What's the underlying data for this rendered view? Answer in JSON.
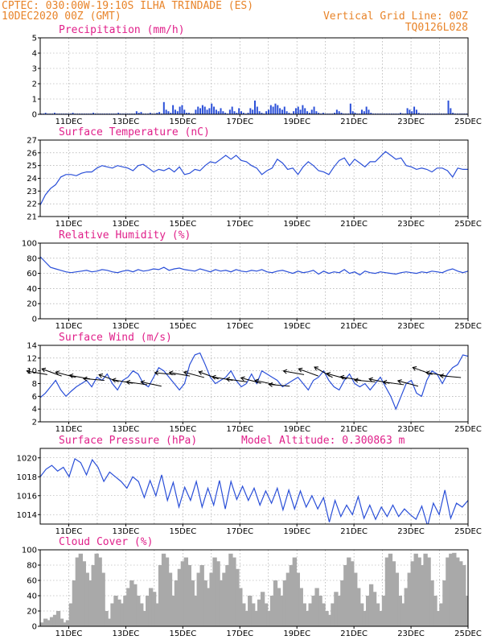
{
  "header": {
    "line1_left": "CPTEC:  030:00W-19:10S  ILHA TRINDADE (ES)",
    "line2_left": "10DEC2020 00Z (GMT)",
    "line1_right": "Vertical Grid Line: 00Z",
    "line2_right": "TQ0126L028"
  },
  "colors": {
    "header": "#e8842a",
    "title": "#e0208a",
    "line": "#2a4fd8",
    "bars": "#2a4fd8",
    "cloud": "#a9a9a9",
    "arrows": "#000000"
  },
  "chart_data": [
    {
      "id": "precip",
      "type": "bar",
      "title": "Precipitation (mm/h)",
      "ylim": [
        0,
        5
      ],
      "yticks": [
        0,
        1,
        2,
        3,
        4,
        5
      ],
      "xticks": [
        "11DEC",
        "13DEC",
        "15DEC",
        "17DEC",
        "19DEC",
        "21DEC",
        "23DEC",
        "25DEC"
      ],
      "x_unit_days": [
        10,
        25
      ],
      "series": [
        {
          "values": [
            0.05,
            0.05,
            0.1,
            0.05,
            0.05,
            0.05,
            0.1,
            0.05,
            0.05,
            0.05,
            0.05,
            0.05,
            0.05,
            0.05,
            0.1,
            0.05,
            0.05,
            0.05,
            0.05,
            0.05,
            0.05,
            0.05,
            0.05,
            0.1,
            0.05,
            0.05,
            0.05,
            0.05,
            0.05,
            0.05,
            0.05,
            0.05,
            0.05,
            0.05,
            0.1,
            0.05,
            0.05,
            0.05,
            0.05,
            0.05,
            0.05,
            0.05,
            0.2,
            0.1,
            0.15,
            0.05,
            0.05,
            0.05,
            0.1,
            0.05,
            0.05,
            0.1,
            0.15,
            0.05,
            0.8,
            0.3,
            0.2,
            0.1,
            0.6,
            0.3,
            0.2,
            0.5,
            0.6,
            0.3,
            0.1,
            0.1,
            0.05,
            0.05,
            0.3,
            0.5,
            0.4,
            0.6,
            0.5,
            0.3,
            0.4,
            0.7,
            0.5,
            0.3,
            0.2,
            0.4,
            0.2,
            0.1,
            0.05,
            0.3,
            0.5,
            0.2,
            0.1,
            0.4,
            0.2,
            0.1,
            0.05,
            0.1,
            0.4,
            0.3,
            0.9,
            0.5,
            0.2,
            0.1,
            0.05,
            0.2,
            0.3,
            0.6,
            0.5,
            0.7,
            0.6,
            0.4,
            0.3,
            0.5,
            0.2,
            0.1,
            0.05,
            0.2,
            0.4,
            0.5,
            0.3,
            0.6,
            0.4,
            0.2,
            0.1,
            0.3,
            0.5,
            0.2,
            0.1,
            0.05,
            0.1,
            0.05,
            0.05,
            0.05,
            0.05,
            0.1,
            0.3,
            0.2,
            0.1,
            0.05,
            0.05,
            0.05,
            0.7,
            0.2,
            0.1,
            0.05,
            0.05,
            0.3,
            0.2,
            0.5,
            0.3,
            0.1,
            0.05,
            0.05,
            0.05,
            0.05,
            0.05,
            0.05,
            0.05,
            0.05,
            0.05,
            0.05,
            0.05,
            0.05,
            0.1,
            0.05,
            0.05,
            0.4,
            0.3,
            0.2,
            0.5,
            0.3,
            0.1,
            0.05,
            0.05,
            0.05,
            0.05,
            0.05,
            0.05,
            0.05,
            0.05,
            0.05,
            0.05,
            0.05,
            0.05,
            0.9,
            0.4,
            0.1,
            0.05,
            0.05,
            0.05,
            0.05,
            0.05,
            0.05
          ]
        }
      ]
    },
    {
      "id": "temp",
      "type": "line",
      "title": "Surface Temperature (nC)",
      "ylim": [
        21,
        27
      ],
      "yticks": [
        21,
        22,
        23,
        24,
        25,
        26,
        27
      ],
      "xticks": [
        "11DEC",
        "13DEC",
        "15DEC",
        "17DEC",
        "19DEC",
        "21DEC",
        "23DEC",
        "25DEC"
      ],
      "x_unit_days": [
        10,
        25
      ],
      "series": [
        {
          "values": [
            21.9,
            22.7,
            23.2,
            23.5,
            24.1,
            24.3,
            24.3,
            24.2,
            24.4,
            24.5,
            24.5,
            24.8,
            25.0,
            24.9,
            24.8,
            25.0,
            24.9,
            24.8,
            24.6,
            25.0,
            25.1,
            24.8,
            24.5,
            24.7,
            24.6,
            24.8,
            24.5,
            24.9,
            24.3,
            24.4,
            24.7,
            24.6,
            25.0,
            25.3,
            25.2,
            25.5,
            25.8,
            25.5,
            25.8,
            25.4,
            25.3,
            25.0,
            24.8,
            24.3,
            24.6,
            24.8,
            25.5,
            25.2,
            24.7,
            24.8,
            24.3,
            24.9,
            25.3,
            25.0,
            24.6,
            24.5,
            24.3,
            24.9,
            25.4,
            25.6,
            25.0,
            25.5,
            25.2,
            24.9,
            25.3,
            25.3,
            25.7,
            26.1,
            25.8,
            25.5,
            25.6,
            25.0,
            24.9,
            24.7,
            24.8,
            24.7,
            24.5,
            24.8,
            24.8,
            24.6,
            24.1,
            24.8,
            24.7,
            24.7
          ]
        }
      ]
    },
    {
      "id": "rh",
      "type": "line",
      "title": "Relative Humidity (%)",
      "ylim": [
        0,
        100
      ],
      "yticks": [
        0,
        20,
        40,
        60,
        80,
        100
      ],
      "xticks": [
        "11DEC",
        "13DEC",
        "15DEC",
        "17DEC",
        "19DEC",
        "21DEC",
        "23DEC",
        "25DEC"
      ],
      "x_unit_days": [
        10,
        25
      ],
      "series": [
        {
          "values": [
            82,
            75,
            68,
            66,
            64,
            62,
            61,
            62,
            63,
            64,
            62,
            63,
            65,
            64,
            62,
            61,
            63,
            64,
            62,
            65,
            63,
            64,
            66,
            65,
            68,
            64,
            66,
            67,
            65,
            64,
            63,
            66,
            64,
            62,
            65,
            63,
            64,
            62,
            65,
            63,
            62,
            64,
            63,
            65,
            62,
            61,
            63,
            64,
            62,
            60,
            63,
            61,
            62,
            64,
            59,
            63,
            60,
            62,
            61,
            65,
            60,
            62,
            58,
            63,
            61,
            60,
            62,
            61,
            60,
            59,
            61,
            62,
            61,
            60,
            62,
            61,
            63,
            62,
            61,
            64,
            66,
            63,
            61,
            63
          ]
        }
      ]
    },
    {
      "id": "wind",
      "type": "line",
      "title": "Surface Wind (m/s)",
      "ylim": [
        2,
        14
      ],
      "yticks": [
        2,
        4,
        6,
        8,
        10,
        12,
        14
      ],
      "xticks": [
        "11DEC",
        "13DEC",
        "15DEC",
        "17DEC",
        "19DEC",
        "21DEC",
        "23DEC",
        "25DEC"
      ],
      "x_unit_days": [
        10,
        25
      ],
      "series": [
        {
          "values": [
            5.8,
            6.5,
            7.5,
            8.5,
            7.0,
            6.0,
            6.8,
            7.5,
            8.0,
            8.5,
            7.5,
            9.0,
            8.5,
            9.5,
            8.0,
            7.0,
            8.5,
            9.0,
            10.0,
            9.5,
            8.0,
            7.5,
            9.0,
            10.5,
            10.0,
            9.0,
            8.0,
            7.0,
            8.0,
            11.0,
            12.5,
            12.8,
            11.0,
            9.0,
            8.0,
            8.5,
            9.0,
            10.0,
            8.5,
            7.5,
            8.0,
            9.5,
            8.0,
            10.0,
            9.5,
            9.0,
            8.5,
            7.5,
            8.0,
            8.5,
            9.0,
            8.0,
            7.0,
            8.5,
            9.0,
            10.0,
            8.5,
            7.5,
            7.0,
            8.5,
            9.5,
            8.0,
            7.5,
            8.0,
            7.0,
            8.0,
            9.0,
            7.5,
            6.0,
            4.0,
            6.0,
            8.0,
            8.5,
            6.5,
            6.0,
            8.5,
            10.0,
            9.5,
            8.0,
            9.5,
            10.5,
            11.0,
            12.5,
            12.3
          ]
        }
      ],
      "barbs": "arrows"
    },
    {
      "id": "pres",
      "type": "line",
      "title": "Surface Pressure (hPa)",
      "annotation": "Model Altitude: 0.300863 m",
      "ylim": [
        1013,
        1021
      ],
      "yticks": [
        1014,
        1016,
        1018,
        1020
      ],
      "xticks": [
        "11DEC",
        "13DEC",
        "15DEC",
        "17DEC",
        "19DEC",
        "21DEC",
        "23DEC",
        "25DEC"
      ],
      "x_unit_days": [
        10,
        25
      ],
      "series": [
        {
          "values": [
            1018.0,
            1018.8,
            1019.2,
            1018.6,
            1019.0,
            1018.0,
            1019.9,
            1019.5,
            1018.2,
            1019.8,
            1019.0,
            1017.5,
            1018.5,
            1018.0,
            1017.5,
            1016.8,
            1018.0,
            1017.5,
            1015.8,
            1017.6,
            1016.0,
            1018.2,
            1015.5,
            1017.4,
            1014.8,
            1016.9,
            1015.5,
            1017.5,
            1014.8,
            1016.8,
            1015.0,
            1017.6,
            1014.6,
            1017.5,
            1015.6,
            1017.0,
            1015.5,
            1016.8,
            1015.0,
            1016.5,
            1015.2,
            1016.8,
            1014.5,
            1016.6,
            1014.6,
            1016.5,
            1014.8,
            1016.0,
            1014.6,
            1015.8,
            1013.2,
            1015.5,
            1013.8,
            1015.0,
            1014.0,
            1015.9,
            1013.6,
            1015.0,
            1013.5,
            1014.8,
            1013.8,
            1015.0,
            1013.8,
            1014.6,
            1014.0,
            1013.5,
            1014.9,
            1012.8,
            1015.2,
            1014.0,
            1016.6,
            1013.6,
            1015.2,
            1014.8,
            1015.5
          ]
        }
      ]
    },
    {
      "id": "cloud",
      "type": "bar",
      "title": "Cloud Cover (%)",
      "ylim": [
        0,
        100
      ],
      "yticks": [
        0,
        20,
        40,
        60,
        80,
        100
      ],
      "xticks": [
        "11DEC",
        "13DEC",
        "15DEC",
        "17DEC",
        "19DEC",
        "21DEC",
        "23DEC",
        "25DEC"
      ],
      "x_unit_days": [
        10,
        25
      ],
      "series": [
        {
          "values": [
            5,
            10,
            8,
            12,
            15,
            20,
            10,
            5,
            8,
            30,
            60,
            90,
            95,
            85,
            70,
            60,
            80,
            95,
            90,
            70,
            20,
            10,
            30,
            40,
            35,
            30,
            40,
            50,
            60,
            55,
            40,
            30,
            20,
            40,
            50,
            45,
            30,
            80,
            95,
            90,
            70,
            40,
            60,
            75,
            85,
            90,
            80,
            60,
            40,
            70,
            80,
            60,
            50,
            70,
            90,
            85,
            60,
            70,
            80,
            95,
            90,
            75,
            50,
            30,
            20,
            40,
            30,
            20,
            35,
            45,
            30,
            20,
            40,
            60,
            50,
            40,
            60,
            70,
            80,
            90,
            70,
            50,
            30,
            20,
            30,
            40,
            50,
            40,
            30,
            20,
            15,
            30,
            45,
            40,
            60,
            80,
            90,
            85,
            70,
            50,
            30,
            20,
            40,
            55,
            45,
            30,
            20,
            40,
            90,
            95,
            85,
            70,
            40,
            30,
            50,
            70,
            85,
            95,
            90,
            80,
            95,
            90,
            60,
            40,
            20,
            30,
            60,
            90,
            95,
            96,
            90,
            85,
            80,
            40
          ]
        }
      ]
    }
  ]
}
